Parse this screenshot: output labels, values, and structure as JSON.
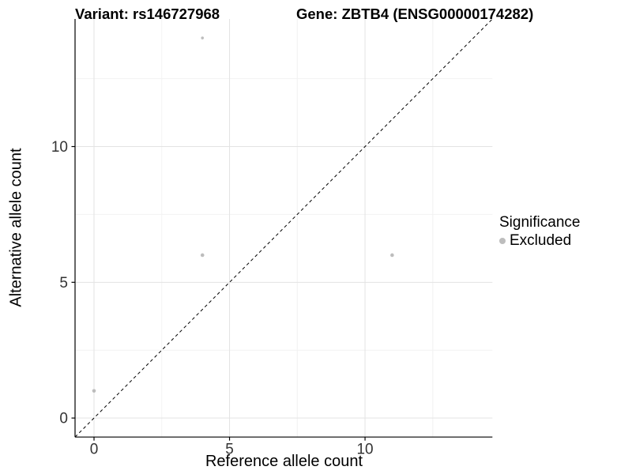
{
  "chart_data": {
    "type": "scatter",
    "titles": {
      "left": "Variant: rs146727968",
      "right": "Gene: ZBTB4 (ENSG00000174282)"
    },
    "xlabel": "Reference allele count",
    "ylabel": "Alternative allele count",
    "xlim": [
      -0.7,
      14.7
    ],
    "ylim": [
      -0.7,
      14.7
    ],
    "x_ticks": [
      0,
      5,
      10
    ],
    "y_ticks": [
      0,
      5,
      10
    ],
    "x_minor_ticks": [
      2.5,
      7.5,
      12.5
    ],
    "y_minor_ticks": [
      2.5,
      7.5,
      12.5
    ],
    "grid": "major+minor",
    "legend_position": "right",
    "legend": {
      "title": "Significance",
      "items": [
        {
          "label": "Excluded",
          "color": "#bdbdbd"
        }
      ]
    },
    "series": [
      {
        "name": "Excluded",
        "color": "#bdbdbd",
        "points": [
          {
            "x": 0,
            "y": 1,
            "r": 2.3
          },
          {
            "x": 4,
            "y": 6,
            "r": 2.3
          },
          {
            "x": 4,
            "y": 14,
            "r": 1.8
          },
          {
            "x": 11,
            "y": 6,
            "r": 2.3
          }
        ]
      }
    ],
    "reference_line": {
      "type": "identity",
      "equation": "y = x",
      "style": "dashed",
      "color": "#000000"
    },
    "colors": {
      "grid_major": "#e3e3e3",
      "grid_minor": "#f2f2f2",
      "axis": "#000000",
      "tick_label": "#333333",
      "point": "#bdbdbd"
    }
  }
}
